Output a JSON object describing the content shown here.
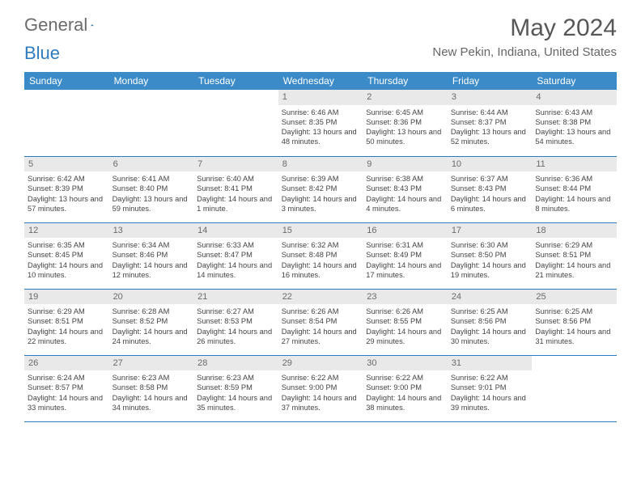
{
  "brand": {
    "part1": "General",
    "part2": "Blue"
  },
  "title": "May 2024",
  "location": "New Pekin, Indiana, United States",
  "colors": {
    "header_bg": "#3b8bc9",
    "header_text": "#ffffff",
    "daynum_bg": "#e9e9e9",
    "border": "#2f7bbf",
    "brand_gray": "#6b6b6b",
    "brand_blue": "#2f7bbf"
  },
  "weekdays": [
    "Sunday",
    "Monday",
    "Tuesday",
    "Wednesday",
    "Thursday",
    "Friday",
    "Saturday"
  ],
  "weeks": [
    [
      {
        "day": "",
        "lines": []
      },
      {
        "day": "",
        "lines": []
      },
      {
        "day": "",
        "lines": []
      },
      {
        "day": "1",
        "lines": [
          "Sunrise: 6:46 AM",
          "Sunset: 8:35 PM",
          "Daylight: 13 hours and 48 minutes."
        ]
      },
      {
        "day": "2",
        "lines": [
          "Sunrise: 6:45 AM",
          "Sunset: 8:36 PM",
          "Daylight: 13 hours and 50 minutes."
        ]
      },
      {
        "day": "3",
        "lines": [
          "Sunrise: 6:44 AM",
          "Sunset: 8:37 PM",
          "Daylight: 13 hours and 52 minutes."
        ]
      },
      {
        "day": "4",
        "lines": [
          "Sunrise: 6:43 AM",
          "Sunset: 8:38 PM",
          "Daylight: 13 hours and 54 minutes."
        ]
      }
    ],
    [
      {
        "day": "5",
        "lines": [
          "Sunrise: 6:42 AM",
          "Sunset: 8:39 PM",
          "Daylight: 13 hours and 57 minutes."
        ]
      },
      {
        "day": "6",
        "lines": [
          "Sunrise: 6:41 AM",
          "Sunset: 8:40 PM",
          "Daylight: 13 hours and 59 minutes."
        ]
      },
      {
        "day": "7",
        "lines": [
          "Sunrise: 6:40 AM",
          "Sunset: 8:41 PM",
          "Daylight: 14 hours and 1 minute."
        ]
      },
      {
        "day": "8",
        "lines": [
          "Sunrise: 6:39 AM",
          "Sunset: 8:42 PM",
          "Daylight: 14 hours and 3 minutes."
        ]
      },
      {
        "day": "9",
        "lines": [
          "Sunrise: 6:38 AM",
          "Sunset: 8:43 PM",
          "Daylight: 14 hours and 4 minutes."
        ]
      },
      {
        "day": "10",
        "lines": [
          "Sunrise: 6:37 AM",
          "Sunset: 8:43 PM",
          "Daylight: 14 hours and 6 minutes."
        ]
      },
      {
        "day": "11",
        "lines": [
          "Sunrise: 6:36 AM",
          "Sunset: 8:44 PM",
          "Daylight: 14 hours and 8 minutes."
        ]
      }
    ],
    [
      {
        "day": "12",
        "lines": [
          "Sunrise: 6:35 AM",
          "Sunset: 8:45 PM",
          "Daylight: 14 hours and 10 minutes."
        ]
      },
      {
        "day": "13",
        "lines": [
          "Sunrise: 6:34 AM",
          "Sunset: 8:46 PM",
          "Daylight: 14 hours and 12 minutes."
        ]
      },
      {
        "day": "14",
        "lines": [
          "Sunrise: 6:33 AM",
          "Sunset: 8:47 PM",
          "Daylight: 14 hours and 14 minutes."
        ]
      },
      {
        "day": "15",
        "lines": [
          "Sunrise: 6:32 AM",
          "Sunset: 8:48 PM",
          "Daylight: 14 hours and 16 minutes."
        ]
      },
      {
        "day": "16",
        "lines": [
          "Sunrise: 6:31 AM",
          "Sunset: 8:49 PM",
          "Daylight: 14 hours and 17 minutes."
        ]
      },
      {
        "day": "17",
        "lines": [
          "Sunrise: 6:30 AM",
          "Sunset: 8:50 PM",
          "Daylight: 14 hours and 19 minutes."
        ]
      },
      {
        "day": "18",
        "lines": [
          "Sunrise: 6:29 AM",
          "Sunset: 8:51 PM",
          "Daylight: 14 hours and 21 minutes."
        ]
      }
    ],
    [
      {
        "day": "19",
        "lines": [
          "Sunrise: 6:29 AM",
          "Sunset: 8:51 PM",
          "Daylight: 14 hours and 22 minutes."
        ]
      },
      {
        "day": "20",
        "lines": [
          "Sunrise: 6:28 AM",
          "Sunset: 8:52 PM",
          "Daylight: 14 hours and 24 minutes."
        ]
      },
      {
        "day": "21",
        "lines": [
          "Sunrise: 6:27 AM",
          "Sunset: 8:53 PM",
          "Daylight: 14 hours and 26 minutes."
        ]
      },
      {
        "day": "22",
        "lines": [
          "Sunrise: 6:26 AM",
          "Sunset: 8:54 PM",
          "Daylight: 14 hours and 27 minutes."
        ]
      },
      {
        "day": "23",
        "lines": [
          "Sunrise: 6:26 AM",
          "Sunset: 8:55 PM",
          "Daylight: 14 hours and 29 minutes."
        ]
      },
      {
        "day": "24",
        "lines": [
          "Sunrise: 6:25 AM",
          "Sunset: 8:56 PM",
          "Daylight: 14 hours and 30 minutes."
        ]
      },
      {
        "day": "25",
        "lines": [
          "Sunrise: 6:25 AM",
          "Sunset: 8:56 PM",
          "Daylight: 14 hours and 31 minutes."
        ]
      }
    ],
    [
      {
        "day": "26",
        "lines": [
          "Sunrise: 6:24 AM",
          "Sunset: 8:57 PM",
          "Daylight: 14 hours and 33 minutes."
        ]
      },
      {
        "day": "27",
        "lines": [
          "Sunrise: 6:23 AM",
          "Sunset: 8:58 PM",
          "Daylight: 14 hours and 34 minutes."
        ]
      },
      {
        "day": "28",
        "lines": [
          "Sunrise: 6:23 AM",
          "Sunset: 8:59 PM",
          "Daylight: 14 hours and 35 minutes."
        ]
      },
      {
        "day": "29",
        "lines": [
          "Sunrise: 6:22 AM",
          "Sunset: 9:00 PM",
          "Daylight: 14 hours and 37 minutes."
        ]
      },
      {
        "day": "30",
        "lines": [
          "Sunrise: 6:22 AM",
          "Sunset: 9:00 PM",
          "Daylight: 14 hours and 38 minutes."
        ]
      },
      {
        "day": "31",
        "lines": [
          "Sunrise: 6:22 AM",
          "Sunset: 9:01 PM",
          "Daylight: 14 hours and 39 minutes."
        ]
      },
      {
        "day": "",
        "lines": []
      }
    ]
  ]
}
